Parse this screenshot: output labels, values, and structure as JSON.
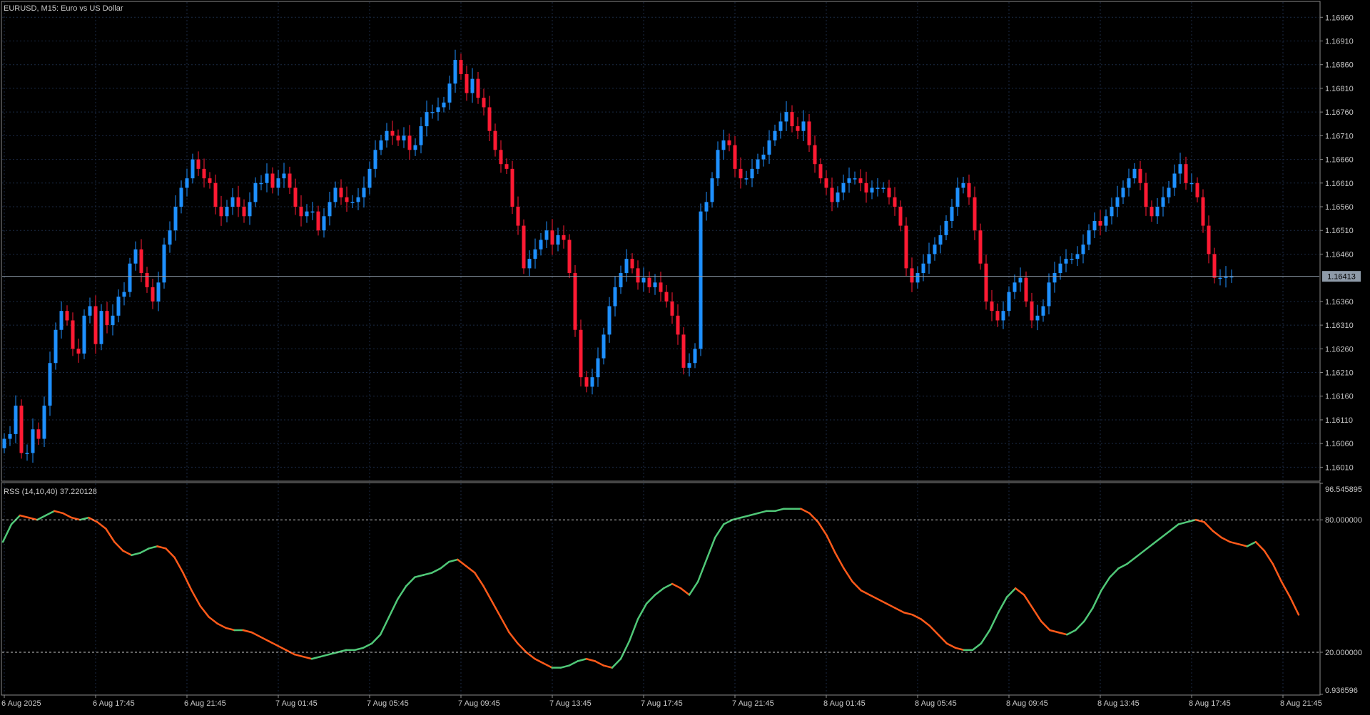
{
  "colors": {
    "background": "#000000",
    "grid": "#1b2a44",
    "frame": "#8a8a8a",
    "axis_text": "#c8c8c8",
    "bull": "#1e90ff",
    "bear": "#ff1a33",
    "price_line": "#8e9aa8",
    "price_tag_bg": "#8e9aa8",
    "price_tag_text": "#000000",
    "rss_up": "#50c878",
    "rss_down": "#ff5a1a",
    "level_line": "#c8c8c8"
  },
  "main_chart": {
    "title": "EURUSD, M15:  Euro vs US Dollar",
    "current_price_label": "1.16413",
    "current_price": 1.16413
  },
  "chart_data": [
    {
      "type": "candlestick",
      "name": "EURUSD, M15",
      "y_axis_labels": [
        "1.16960",
        "1.16910",
        "1.16860",
        "1.16810",
        "1.16760",
        "1.16710",
        "1.16660",
        "1.16610",
        "1.16560",
        "1.16510",
        "1.16460",
        "1.16360",
        "1.16310",
        "1.16260",
        "1.16210",
        "1.16160",
        "1.16110",
        "1.16060",
        "1.16010"
      ],
      "ylim": [
        1.15982,
        1.16992
      ],
      "grid": true,
      "x_tick_labels": [
        "6 Aug 2025",
        "6 Aug 17:45",
        "6 Aug 21:45",
        "7 Aug 01:45",
        "7 Aug 05:45",
        "7 Aug 09:45",
        "7 Aug 13:45",
        "7 Aug 17:45",
        "7 Aug 21:45",
        "8 Aug 01:45",
        "8 Aug 05:45",
        "8 Aug 09:45",
        "8 Aug 13:45",
        "8 Aug 17:45",
        "8 Aug 21:45"
      ],
      "bars_per_x_tick": 16,
      "candles_close": [
        1.1607,
        1.1608,
        1.1614,
        1.1604,
        1.1604,
        1.1609,
        1.1607,
        1.1614,
        1.1623,
        1.163,
        1.1634,
        1.1632,
        1.1626,
        1.1625,
        1.1633,
        1.1635,
        1.1627,
        1.1634,
        1.1631,
        1.1633,
        1.1637,
        1.1638,
        1.1644,
        1.1647,
        1.1642,
        1.1639,
        1.1636,
        1.164,
        1.1648,
        1.1651,
        1.1656,
        1.166,
        1.1662,
        1.1666,
        1.1664,
        1.1662,
        1.1661,
        1.1656,
        1.1654,
        1.1656,
        1.1658,
        1.1656,
        1.1654,
        1.1657,
        1.1661,
        1.1661,
        1.1663,
        1.166,
        1.1662,
        1.1663,
        1.166,
        1.1656,
        1.1654,
        1.1655,
        1.1655,
        1.1651,
        1.1654,
        1.1657,
        1.166,
        1.1658,
        1.1657,
        1.1657,
        1.1658,
        1.166,
        1.1664,
        1.1668,
        1.167,
        1.1672,
        1.1671,
        1.167,
        1.1671,
        1.1668,
        1.1669,
        1.1673,
        1.1676,
        1.1676,
        1.1677,
        1.1678,
        1.1682,
        1.1687,
        1.1684,
        1.168,
        1.1683,
        1.1679,
        1.1677,
        1.1672,
        1.1668,
        1.1665,
        1.1664,
        1.1656,
        1.1652,
        1.1643,
        1.1645,
        1.1647,
        1.1649,
        1.1651,
        1.1648,
        1.165,
        1.1649,
        1.1642,
        1.163,
        1.162,
        1.1618,
        1.162,
        1.1624,
        1.1629,
        1.1635,
        1.1639,
        1.1642,
        1.1645,
        1.1643,
        1.164,
        1.1641,
        1.1639,
        1.164,
        1.1638,
        1.1636,
        1.1633,
        1.1629,
        1.1622,
        1.1623,
        1.1626,
        1.1655,
        1.1657,
        1.1662,
        1.1668,
        1.167,
        1.1669,
        1.1664,
        1.1662,
        1.1662,
        1.1664,
        1.1666,
        1.1667,
        1.167,
        1.1672,
        1.1674,
        1.1676,
        1.1673,
        1.1672,
        1.1674,
        1.1669,
        1.1665,
        1.1662,
        1.166,
        1.1657,
        1.1659,
        1.1661,
        1.1662,
        1.1662,
        1.1661,
        1.1659,
        1.166,
        1.166,
        1.166,
        1.1658,
        1.1656,
        1.1652,
        1.1643,
        1.164,
        1.1642,
        1.1644,
        1.1646,
        1.1648,
        1.165,
        1.1653,
        1.1656,
        1.166,
        1.1661,
        1.1658,
        1.1651,
        1.1644,
        1.1636,
        1.1634,
        1.1632,
        1.1634,
        1.1638,
        1.164,
        1.1641,
        1.1636,
        1.1632,
        1.1633,
        1.1635,
        1.164,
        1.1642,
        1.1644,
        1.1645,
        1.1645,
        1.1646,
        1.1648,
        1.1651,
        1.1653,
        1.1652,
        1.1654,
        1.1656,
        1.1658,
        1.166,
        1.1662,
        1.1664,
        1.1661,
        1.1656,
        1.1654,
        1.1656,
        1.1658,
        1.166,
        1.1663,
        1.1665,
        1.1661,
        1.1661,
        1.1658,
        1.1652,
        1.1646,
        1.1641,
        1.1641,
        1.16412,
        1.16413
      ]
    },
    {
      "type": "line",
      "name": "RSS (14,10,40) 37.220128",
      "y_axis_labels": [
        "96.545895",
        "80.000000",
        "20.000000",
        "0.936596"
      ],
      "ylim": [
        0.936596,
        96.545895
      ],
      "levels": [
        80,
        20
      ],
      "rss_values": [
        70,
        78,
        82,
        81,
        80,
        82,
        84,
        83,
        81,
        80,
        81,
        79,
        76,
        70,
        66,
        64,
        65,
        67,
        68,
        67,
        63,
        56,
        48,
        41,
        36,
        33,
        31,
        30,
        30,
        29,
        27,
        25,
        23,
        21,
        19,
        18,
        17,
        18,
        19,
        20,
        21,
        21,
        22,
        24,
        28,
        36,
        44,
        50,
        54,
        55,
        56,
        58,
        61,
        62,
        59,
        56,
        50,
        43,
        36,
        29,
        24,
        20,
        17,
        15,
        13,
        13,
        14,
        16,
        17,
        16,
        14,
        13,
        17,
        25,
        35,
        42,
        46,
        49,
        51,
        49,
        46,
        52,
        62,
        72,
        78,
        80,
        81,
        82,
        83,
        84,
        84,
        85,
        85,
        85,
        83,
        79,
        73,
        65,
        58,
        52,
        48,
        46,
        44,
        42,
        40,
        38,
        37,
        35,
        32,
        28,
        24,
        22,
        21,
        21,
        24,
        30,
        38,
        45,
        49,
        46,
        40,
        34,
        30,
        29,
        28,
        30,
        34,
        40,
        48,
        54,
        58,
        60,
        63,
        66,
        69,
        72,
        75,
        78,
        79,
        80,
        79,
        75,
        72,
        70,
        69,
        68,
        70,
        66,
        60,
        52,
        45,
        37
      ]
    }
  ]
}
